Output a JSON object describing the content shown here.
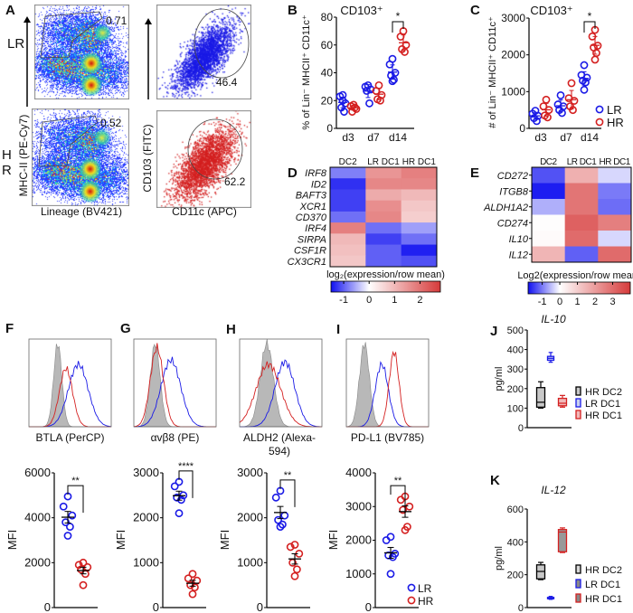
{
  "panel_labels": {
    "A": "A",
    "B": "B",
    "C": "C",
    "D": "D",
    "E": "E",
    "F": "F",
    "G": "G",
    "H": "H",
    "I": "I",
    "J": "J",
    "K": "K"
  },
  "colors": {
    "LR": "#1a1ae6",
    "HR": "#d42020",
    "isotype": "#b8b8b8",
    "heat_low": "#1010f0",
    "heat_mid": "#ffffff",
    "heat_high": "#d63a3a"
  },
  "panel_A": {
    "row_labels": [
      "LR",
      "HR"
    ],
    "y_label_left": "MHC-II (PE-Cy7)",
    "x_label_left": "Lineage (BV421)",
    "y_label_right": "CD103 (FITC)",
    "x_label_right": "CD11c (APC)",
    "gate_values": {
      "LR_lineage": "0.71",
      "LR_cd103": "46.4",
      "HR_lineage": "0.52",
      "HR_cd103": "62.2"
    }
  },
  "chart_data": [
    {
      "id": "B",
      "type": "scatter",
      "title": "CD103⁺",
      "ylabel": "% of Lin⁻ MHCII⁺ CD11c⁺",
      "categories": [
        "d3",
        "d7",
        "d14"
      ],
      "ylim": [
        0,
        80
      ],
      "yticks": [
        0,
        20,
        40,
        60,
        80
      ],
      "series": [
        {
          "name": "LR",
          "values": [
            [
              24,
              23,
              18,
              15,
              12,
              20
            ],
            [
              31,
              30,
              28,
              27,
              18
            ],
            [
              50,
              46,
              40,
              38,
              35,
              34
            ]
          ]
        },
        {
          "name": "HR",
          "values": [
            [
              17,
              16,
              14,
              12,
              15
            ],
            [
              31,
              27,
              24,
              21,
              20
            ],
            [
              70,
              66,
              60,
              57,
              55
            ]
          ]
        }
      ],
      "significance": [
        {
          "category": "d14",
          "label": "*"
        }
      ]
    },
    {
      "id": "C",
      "type": "scatter",
      "title": "CD103⁺",
      "ylabel": "# of Lin⁻ MHCII⁺ CD11c⁺",
      "categories": [
        "d3",
        "d7",
        "d14"
      ],
      "ylim": [
        0,
        3000
      ],
      "yticks": [
        0,
        1000,
        2000,
        3000
      ],
      "series": [
        {
          "name": "LR",
          "values": [
            [
              480,
              400,
              340,
              280,
              200
            ],
            [
              900,
              650,
              600,
              500,
              420
            ],
            [
              1720,
              1450,
              1380,
              1300,
              1250,
              1050
            ]
          ]
        },
        {
          "name": "HR",
          "values": [
            [
              780,
              600,
              500,
              350,
              300
            ],
            [
              1230,
              820,
              750,
              600,
              500
            ],
            [
              2680,
              2500,
              2250,
              2200,
              2050,
              1870
            ]
          ]
        }
      ],
      "significance": [
        {
          "category": "d14",
          "label": "*"
        }
      ],
      "legend": {
        "placement": "bottom-right",
        "entries": [
          "LR",
          "HR"
        ]
      }
    },
    {
      "id": "D",
      "type": "heatmap",
      "columns": [
        "DC2",
        "LR DC1",
        "HR DC1"
      ],
      "rows": [
        "IRF8",
        "ID2",
        "BAFT3",
        "XCR1",
        "CD370",
        "IRF4",
        "SIRPA",
        "CSF1R",
        "CX3CR1"
      ],
      "values": [
        [
          -0.8,
          1.5,
          1.8
        ],
        [
          -1.3,
          1.7,
          1.7
        ],
        [
          -1.2,
          1.2,
          1.0
        ],
        [
          -1.2,
          1.6,
          0.8
        ],
        [
          -0.9,
          1.7,
          0.7
        ],
        [
          1.8,
          -0.9,
          -0.6
        ],
        [
          1.0,
          -1.2,
          -0.9
        ],
        [
          0.9,
          -1.0,
          -1.4
        ],
        [
          0.8,
          -1.0,
          -1.1
        ]
      ],
      "colorbar": {
        "label": "log₂(expression/row mean)",
        "range": [
          -1.5,
          2.8
        ],
        "ticks": [
          -1,
          0,
          1,
          2
        ]
      }
    },
    {
      "id": "E",
      "type": "heatmap",
      "columns": [
        "DC2",
        "LR DC1",
        "HR DC1"
      ],
      "rows": [
        "CD272",
        "ITGB8",
        "ALDH1A2",
        "CD274",
        "IL10",
        "IL12"
      ],
      "values": [
        [
          -1.3,
          1.6,
          -0.3
        ],
        [
          -1.7,
          2.8,
          -1.0
        ],
        [
          -0.6,
          2.8,
          -1.1
        ],
        [
          0.05,
          3.2,
          2.6
        ],
        [
          0.1,
          3.0,
          -0.3
        ],
        [
          1.5,
          -1.2,
          3.0
        ]
      ],
      "colorbar": {
        "label": "Log2(expression/row mean)",
        "range": [
          -1.8,
          4.0
        ],
        "ticks": [
          -1,
          0,
          1,
          2,
          3
        ]
      }
    },
    {
      "id": "F",
      "type": "scatter",
      "histogram_xlabel": "BTLA (PerCP)",
      "ylabel": "MFI",
      "ylim": [
        0,
        6000
      ],
      "yticks": [
        0,
        2000,
        4000,
        6000
      ],
      "series": [
        {
          "name": "LR",
          "values": [
            4950,
            4500,
            4100,
            3800,
            3600,
            3200
          ]
        },
        {
          "name": "HR",
          "values": [
            2000,
            1900,
            1800,
            1700,
            1500,
            1000
          ]
        }
      ],
      "significance": "**"
    },
    {
      "id": "G",
      "type": "scatter",
      "histogram_xlabel": "αvβ8 (PE)",
      "ylabel": "MFI",
      "ylim": [
        0,
        3000
      ],
      "yticks": [
        0,
        1000,
        2000,
        3000
      ],
      "series": [
        {
          "name": "LR",
          "values": [
            2800,
            2700,
            2500,
            2450,
            2400,
            2100
          ]
        },
        {
          "name": "HR",
          "values": [
            750,
            650,
            600,
            500,
            450,
            300
          ]
        }
      ],
      "significance": "****"
    },
    {
      "id": "H",
      "type": "scatter",
      "histogram_xlabel": "ALDH2 (Alexa-594)",
      "ylabel": "MFI",
      "ylim": [
        0,
        3000
      ],
      "yticks": [
        0,
        1000,
        2000,
        3000
      ],
      "series": [
        {
          "name": "LR",
          "values": [
            2600,
            2450,
            2050,
            1950,
            1850,
            1800
          ]
        },
        {
          "name": "HR",
          "values": [
            1400,
            1350,
            1200,
            1000,
            850,
            700
          ]
        }
      ],
      "significance": "**"
    },
    {
      "id": "I",
      "type": "scatter",
      "histogram_xlabel": "PD-L1 (BV785)",
      "ylabel": "MFI",
      "ylim": [
        0,
        4000
      ],
      "yticks": [
        0,
        1000,
        2000,
        3000,
        4000
      ],
      "series": [
        {
          "name": "LR",
          "values": [
            2100,
            2000,
            1600,
            1550,
            1500,
            1000
          ]
        },
        {
          "name": "HR",
          "values": [
            3300,
            3200,
            3000,
            2900,
            2400,
            2300
          ]
        }
      ],
      "significance": "**",
      "legend": {
        "placement": "bottom-right",
        "entries": [
          "LR",
          "HR"
        ]
      }
    },
    {
      "id": "J",
      "type": "box",
      "title": "IL-10",
      "ylabel": "pg/ml",
      "ylim": [
        0,
        500
      ],
      "yticks": [
        0,
        100,
        200,
        300,
        400,
        500
      ],
      "series": [
        {
          "name": "HR DC2",
          "min": 100,
          "q1": 105,
          "median": 130,
          "q3": 205,
          "max": 235
        },
        {
          "name": "LR DC1",
          "min": 335,
          "q1": 345,
          "median": 355,
          "q3": 365,
          "max": 385
        },
        {
          "name": "HR DC1",
          "min": 105,
          "q1": 112,
          "median": 125,
          "q3": 150,
          "max": 165
        }
      ],
      "legend": {
        "placement": "right",
        "entries": [
          "HR DC2",
          "LR DC1",
          "HR DC1"
        ]
      }
    },
    {
      "id": "K",
      "type": "box",
      "title": "IL-12",
      "ylabel": "pg/ml",
      "ylim": [
        0,
        600
      ],
      "yticks": [
        0,
        200,
        400,
        600
      ],
      "series": [
        {
          "name": "HR DC2",
          "min": 170,
          "q1": 175,
          "median": 220,
          "q3": 260,
          "max": 275
        },
        {
          "name": "LR DC1",
          "min": 50,
          "q1": 55,
          "median": 60,
          "q3": 62,
          "max": 68
        },
        {
          "name": "HR DC1",
          "min": 335,
          "q1": 340,
          "median": 460,
          "q3": 475,
          "max": 485
        }
      ],
      "legend": {
        "placement": "right",
        "entries": [
          "HR DC2",
          "LR DC1",
          "HR DC1"
        ]
      }
    }
  ]
}
